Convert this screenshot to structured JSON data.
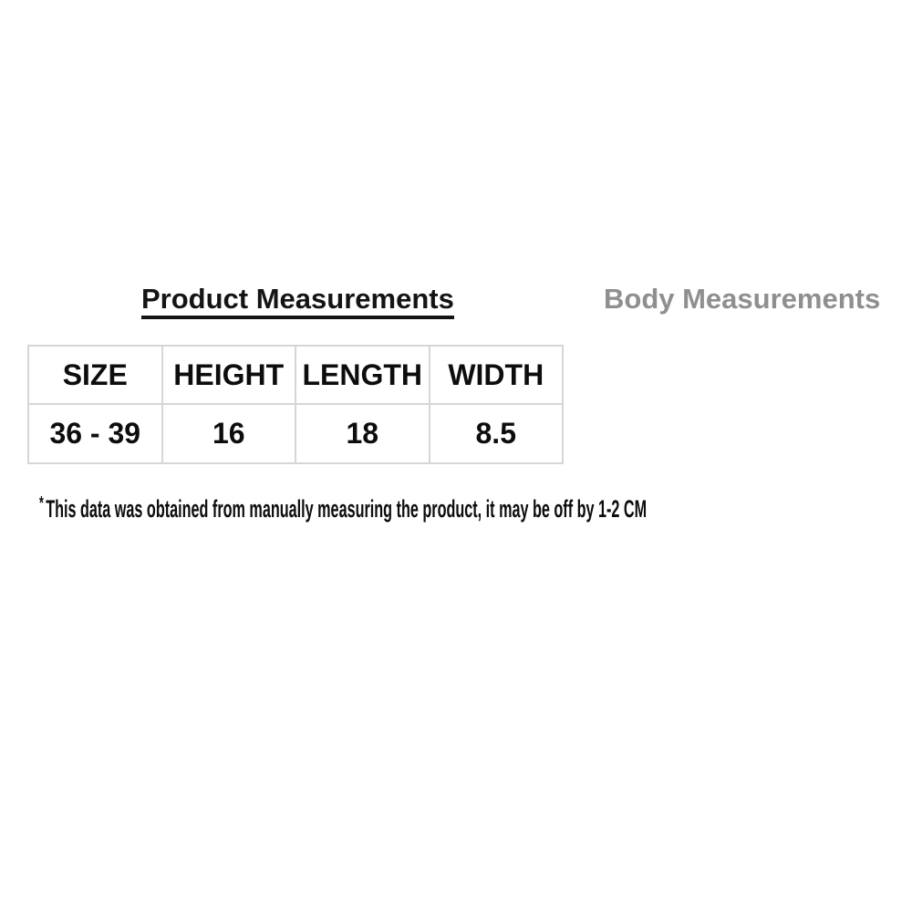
{
  "panel": {
    "tabs": [
      {
        "label": "Product Measurements",
        "active": true
      },
      {
        "label": "Body Measurements",
        "active": false
      }
    ]
  },
  "table": {
    "columns": [
      "SIZE",
      "HEIGHT",
      "LENGTH",
      "WIDTH"
    ],
    "rows": [
      [
        "36 - 39",
        "16",
        "18",
        "8.5"
      ]
    ]
  },
  "footnote": {
    "marker": "*",
    "text": "This data was obtained from manually measuring the product, it may be off by 1-2 CM"
  },
  "colors": {
    "background": "#ffffff",
    "active_tab_text": "#141414",
    "active_tab_underline": "#141414",
    "inactive_tab_text": "#8f8f8f",
    "table_border": "#d6d6d6",
    "cell_text": "#0d0d0d"
  }
}
